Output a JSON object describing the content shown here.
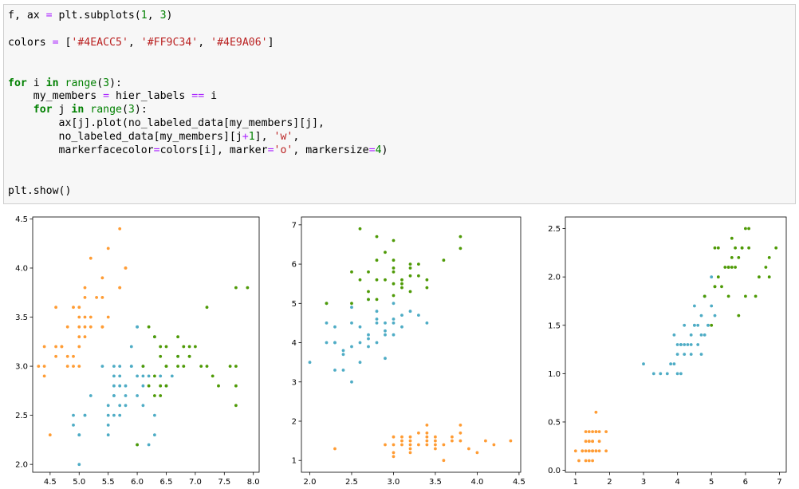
{
  "code_cell": {
    "lines": [
      [
        {
          "t": "f, ax ",
          "c": ""
        },
        {
          "t": "=",
          "c": "op"
        },
        {
          "t": " plt.subplots(",
          "c": ""
        },
        {
          "t": "1",
          "c": "num"
        },
        {
          "t": ", ",
          "c": ""
        },
        {
          "t": "3",
          "c": "num"
        },
        {
          "t": ")",
          "c": ""
        }
      ],
      [],
      [
        {
          "t": "colors ",
          "c": ""
        },
        {
          "t": "=",
          "c": "op"
        },
        {
          "t": " [",
          "c": ""
        },
        {
          "t": "'#4EACC5'",
          "c": "str"
        },
        {
          "t": ", ",
          "c": ""
        },
        {
          "t": "'#FF9C34'",
          "c": "str"
        },
        {
          "t": ", ",
          "c": ""
        },
        {
          "t": "'#4E9A06'",
          "c": "str"
        },
        {
          "t": "]",
          "c": ""
        }
      ],
      [],
      [],
      [
        {
          "t": "for",
          "c": "kw"
        },
        {
          "t": " i ",
          "c": ""
        },
        {
          "t": "in",
          "c": "kw"
        },
        {
          "t": " ",
          "c": ""
        },
        {
          "t": "range",
          "c": "bi"
        },
        {
          "t": "(",
          "c": ""
        },
        {
          "t": "3",
          "c": "num"
        },
        {
          "t": "):",
          "c": ""
        }
      ],
      [
        {
          "t": "    my_members ",
          "c": ""
        },
        {
          "t": "=",
          "c": "op"
        },
        {
          "t": " hier_labels ",
          "c": ""
        },
        {
          "t": "==",
          "c": "op"
        },
        {
          "t": " i",
          "c": ""
        }
      ],
      [
        {
          "t": "    ",
          "c": ""
        },
        {
          "t": "for",
          "c": "kw"
        },
        {
          "t": " j ",
          "c": ""
        },
        {
          "t": "in",
          "c": "kw"
        },
        {
          "t": " ",
          "c": ""
        },
        {
          "t": "range",
          "c": "bi"
        },
        {
          "t": "(",
          "c": ""
        },
        {
          "t": "3",
          "c": "num"
        },
        {
          "t": "):",
          "c": ""
        }
      ],
      [
        {
          "t": "        ax[j].plot(no_labeled_data[my_members][j],",
          "c": ""
        }
      ],
      [
        {
          "t": "        no_labeled_data[my_members][j",
          "c": ""
        },
        {
          "t": "+",
          "c": "op"
        },
        {
          "t": "1",
          "c": "num"
        },
        {
          "t": "], ",
          "c": ""
        },
        {
          "t": "'w'",
          "c": "str"
        },
        {
          "t": ",",
          "c": ""
        }
      ],
      [
        {
          "t": "        markerfacecolor",
          "c": ""
        },
        {
          "t": "=",
          "c": "op"
        },
        {
          "t": "colors[i], marker",
          "c": ""
        },
        {
          "t": "=",
          "c": "op"
        },
        {
          "t": "'o'",
          "c": "str"
        },
        {
          "t": ", markersize",
          "c": ""
        },
        {
          "t": "=",
          "c": "op"
        },
        {
          "t": "4",
          "c": "num"
        },
        {
          "t": ")",
          "c": ""
        }
      ],
      [],
      [],
      [
        {
          "t": "plt.show()",
          "c": ""
        }
      ]
    ]
  },
  "colors": {
    "blue": "#4EACC5",
    "orange": "#FF9C34",
    "green": "#4E9A06"
  },
  "chart_data": [
    {
      "type": "scatter",
      "title": "",
      "xlabel": "",
      "ylabel": "",
      "xlim": [
        4.2,
        8.1
      ],
      "ylim": [
        1.92,
        4.52
      ],
      "xticks": [
        "4.5",
        "5.0",
        "5.5",
        "6.0",
        "6.5",
        "7.0",
        "7.5",
        "8.0"
      ],
      "yticks": [
        "2.0",
        "2.5",
        "3.0",
        "3.5",
        "4.0",
        "4.5"
      ],
      "series": [
        {
          "color": "#FF9C34",
          "x": [
            4.3,
            4.4,
            4.4,
            4.4,
            4.5,
            4.6,
            4.6,
            4.6,
            4.7,
            4.8,
            4.8,
            4.8,
            4.9,
            4.9,
            5.0,
            5.0,
            5.0,
            5.0,
            5.0,
            5.1,
            5.1,
            5.1,
            5.1,
            5.1,
            5.2,
            5.2,
            5.3,
            5.4,
            5.4,
            5.4,
            5.5,
            5.5,
            5.7,
            5.7,
            5.7,
            5.8,
            5.8,
            4.7,
            4.9,
            5.0,
            5.4,
            5.2
          ],
          "y": [
            3.0,
            2.9,
            3.0,
            3.2,
            2.3,
            3.1,
            3.2,
            3.6,
            3.2,
            3.0,
            3.1,
            3.4,
            3.0,
            3.1,
            3.0,
            3.2,
            3.3,
            3.4,
            3.5,
            3.3,
            3.4,
            3.5,
            3.7,
            3.8,
            3.4,
            3.5,
            3.7,
            3.4,
            3.7,
            3.9,
            3.5,
            4.2,
            3.8,
            4.4,
            3.8,
            4.0,
            4.0,
            3.2,
            3.6,
            3.6,
            3.4,
            4.1
          ]
        },
        {
          "color": "#4EACC5",
          "x": [
            4.9,
            4.9,
            5.0,
            5.0,
            5.1,
            5.2,
            5.4,
            5.5,
            5.5,
            5.5,
            5.6,
            5.6,
            5.7,
            5.7,
            5.7,
            5.8,
            5.8,
            5.9,
            5.9,
            6.0,
            6.0,
            6.0,
            6.0,
            6.1,
            6.1,
            6.2,
            6.2,
            6.3,
            6.3,
            6.4,
            6.5,
            5.5,
            5.6,
            5.7,
            5.8,
            5.6,
            6.6,
            6.7,
            5.6,
            5.9,
            6.1,
            5.0,
            5.1,
            5.6,
            6.0,
            6.3,
            6.1,
            5.7
          ],
          "y": [
            2.4,
            2.5,
            2.0,
            2.3,
            2.5,
            2.7,
            3.0,
            2.3,
            2.4,
            2.6,
            2.5,
            2.9,
            2.6,
            2.8,
            3.0,
            2.6,
            2.7,
            3.0,
            3.2,
            2.2,
            2.7,
            2.9,
            3.4,
            2.8,
            3.0,
            2.2,
            2.9,
            2.3,
            2.5,
            2.9,
            2.8,
            2.5,
            3.0,
            2.9,
            2.8,
            2.7,
            2.9,
            3.1,
            2.8,
            3.0,
            2.9,
            2.3,
            2.5,
            2.7,
            3.4,
            3.3,
            2.6,
            2.5
          ]
        },
        {
          "color": "#4E9A06",
          "x": [
            6.1,
            6.2,
            6.3,
            6.3,
            6.3,
            6.4,
            6.4,
            6.5,
            6.5,
            6.5,
            6.7,
            6.7,
            6.7,
            6.8,
            6.8,
            6.9,
            6.9,
            7.0,
            7.2,
            7.2,
            7.3,
            7.4,
            7.6,
            7.7,
            7.7,
            7.7,
            7.9,
            6.4,
            6.5,
            6.9,
            7.1,
            6.2,
            6.4,
            7.7,
            6.0
          ],
          "y": [
            3.0,
            3.4,
            2.7,
            2.9,
            3.3,
            2.8,
            3.2,
            3.0,
            3.2,
            2.8,
            3.0,
            3.1,
            3.3,
            3.0,
            3.2,
            3.1,
            3.2,
            3.2,
            3.0,
            3.6,
            2.9,
            2.8,
            3.0,
            2.6,
            3.0,
            3.8,
            3.8,
            3.1,
            3.0,
            3.1,
            3.0,
            2.8,
            2.7,
            2.8,
            2.2
          ]
        }
      ]
    },
    {
      "type": "scatter",
      "title": "",
      "xlabel": "",
      "ylabel": "",
      "xlim": [
        1.9,
        4.52
      ],
      "ylim": [
        0.7,
        7.2
      ],
      "xticks": [
        "2.0",
        "2.5",
        "3.0",
        "3.5",
        "4.0",
        "4.5"
      ],
      "yticks": [
        "1",
        "2",
        "3",
        "4",
        "5",
        "6",
        "7"
      ],
      "series": [
        {
          "color": "#FF9C34",
          "x": [
            2.3,
            2.9,
            3.0,
            3.0,
            3.1,
            3.1,
            3.2,
            3.2,
            3.2,
            3.3,
            3.3,
            3.4,
            3.4,
            3.4,
            3.4,
            3.5,
            3.5,
            3.5,
            3.6,
            3.6,
            3.7,
            3.8,
            3.8,
            3.8,
            3.9,
            4.0,
            4.1,
            4.2,
            4.4,
            3.0,
            3.1,
            3.2,
            3.4,
            3.5,
            3.7,
            3.0,
            3.2
          ],
          "y": [
            1.3,
            1.4,
            1.1,
            1.4,
            1.5,
            1.6,
            1.2,
            1.4,
            1.5,
            1.4,
            1.7,
            1.5,
            1.6,
            1.7,
            1.9,
            1.3,
            1.4,
            1.6,
            1.0,
            1.4,
            1.5,
            1.5,
            1.7,
            1.9,
            1.3,
            1.2,
            1.5,
            1.4,
            1.5,
            1.6,
            1.4,
            1.3,
            1.4,
            1.5,
            1.6,
            1.2,
            1.6
          ]
        },
        {
          "color": "#4EACC5",
          "x": [
            2.0,
            2.2,
            2.2,
            2.3,
            2.3,
            2.3,
            2.4,
            2.4,
            2.5,
            2.5,
            2.5,
            2.6,
            2.6,
            2.7,
            2.7,
            2.7,
            2.8,
            2.8,
            2.8,
            2.9,
            2.9,
            2.9,
            3.0,
            3.0,
            3.0,
            3.1,
            3.2,
            3.3,
            3.4,
            2.5,
            2.6,
            2.7,
            2.8,
            2.9,
            3.0,
            3.1,
            2.4,
            2.2,
            2.3
          ],
          "y": [
            3.5,
            4.0,
            4.5,
            3.3,
            4.0,
            4.4,
            3.3,
            3.8,
            3.0,
            3.9,
            4.5,
            3.5,
            4.0,
            3.9,
            4.2,
            5.1,
            4.0,
            4.5,
            4.8,
            4.2,
            4.5,
            3.6,
            4.2,
            4.5,
            5.0,
            4.7,
            4.8,
            4.7,
            4.5,
            4.9,
            4.4,
            4.1,
            4.6,
            4.3,
            4.6,
            4.4,
            3.7,
            5.0,
            4.0
          ]
        },
        {
          "color": "#4E9A06",
          "x": [
            2.5,
            2.5,
            2.6,
            2.7,
            2.7,
            2.8,
            2.8,
            2.8,
            2.9,
            3.0,
            3.0,
            3.0,
            3.0,
            3.1,
            3.1,
            3.1,
            3.2,
            3.2,
            3.2,
            3.3,
            3.3,
            3.4,
            3.6,
            3.8,
            3.8,
            2.8,
            3.0,
            2.9,
            2.2,
            2.6,
            3.0,
            3.2,
            2.7,
            3.4
          ],
          "y": [
            5.8,
            5.0,
            6.9,
            5.1,
            5.3,
            5.6,
            6.1,
            6.7,
            5.6,
            5.5,
            5.8,
            6.1,
            6.6,
            5.4,
            5.5,
            5.6,
            5.7,
            5.9,
            6.0,
            5.7,
            6.0,
            5.4,
            6.1,
            6.4,
            6.7,
            5.1,
            5.2,
            6.3,
            5.0,
            5.6,
            5.9,
            5.3,
            5.8,
            5.6
          ]
        }
      ]
    },
    {
      "type": "scatter",
      "title": "",
      "xlabel": "",
      "ylabel": "",
      "xlim": [
        0.7,
        7.2
      ],
      "ylim": [
        -0.02,
        2.62
      ],
      "xticks": [
        "1",
        "2",
        "3",
        "4",
        "5",
        "6",
        "7"
      ],
      "yticks": [
        "0.0",
        "0.5",
        "1.0",
        "1.5",
        "2.0",
        "2.5"
      ],
      "series": [
        {
          "color": "#FF9C34",
          "x": [
            1.0,
            1.1,
            1.2,
            1.3,
            1.3,
            1.4,
            1.4,
            1.4,
            1.4,
            1.5,
            1.5,
            1.5,
            1.5,
            1.5,
            1.6,
            1.6,
            1.6,
            1.7,
            1.7,
            1.7,
            1.9,
            1.9,
            1.3,
            1.4,
            1.5,
            1.6,
            1.2,
            1.3,
            1.4,
            1.5,
            1.6
          ],
          "y": [
            0.2,
            0.1,
            0.2,
            0.2,
            0.3,
            0.1,
            0.2,
            0.3,
            0.4,
            0.1,
            0.2,
            0.3,
            0.4,
            0.2,
            0.2,
            0.4,
            0.6,
            0.2,
            0.3,
            0.4,
            0.2,
            0.4,
            0.4,
            0.3,
            0.2,
            0.2,
            0.2,
            0.1,
            0.2,
            0.3,
            0.4
          ]
        },
        {
          "color": "#4EACC5",
          "x": [
            3.0,
            3.3,
            3.5,
            3.7,
            3.9,
            4.0,
            4.0,
            4.1,
            4.2,
            4.2,
            4.3,
            4.4,
            4.4,
            4.5,
            4.5,
            4.6,
            4.7,
            4.7,
            4.8,
            4.9,
            5.0,
            5.1,
            3.9,
            4.1,
            4.2,
            4.5,
            4.6,
            4.8,
            4.9,
            5.0,
            3.8,
            4.0,
            4.4,
            4.7,
            4.8,
            4.1
          ],
          "y": [
            1.1,
            1.0,
            1.0,
            1.0,
            1.1,
            1.0,
            1.2,
            1.3,
            1.2,
            1.5,
            1.3,
            1.4,
            1.2,
            1.5,
            1.7,
            1.5,
            1.4,
            1.6,
            1.8,
            1.5,
            1.7,
            1.6,
            1.4,
            1.0,
            1.3,
            1.5,
            1.3,
            1.4,
            1.5,
            2.0,
            1.1,
            1.3,
            1.3,
            1.2,
            1.8,
            1.3
          ]
        },
        {
          "color": "#4E9A06",
          "x": [
            4.8,
            5.0,
            5.1,
            5.1,
            5.2,
            5.3,
            5.4,
            5.5,
            5.6,
            5.6,
            5.7,
            5.8,
            5.8,
            5.9,
            6.0,
            6.1,
            6.1,
            6.3,
            6.6,
            6.7,
            6.9,
            5.1,
            5.5,
            5.7,
            5.6,
            6.0,
            6.4,
            5.2,
            5.5,
            5.9,
            6.7
          ],
          "y": [
            1.8,
            1.5,
            1.9,
            2.3,
            2.3,
            1.9,
            2.1,
            1.8,
            2.1,
            2.4,
            2.3,
            1.6,
            2.2,
            2.3,
            1.8,
            2.3,
            2.5,
            1.8,
            2.1,
            2.0,
            2.3,
            1.9,
            2.1,
            2.1,
            2.2,
            2.5,
            2.0,
            2.0,
            2.1,
            2.3,
            2.2
          ]
        }
      ]
    }
  ]
}
